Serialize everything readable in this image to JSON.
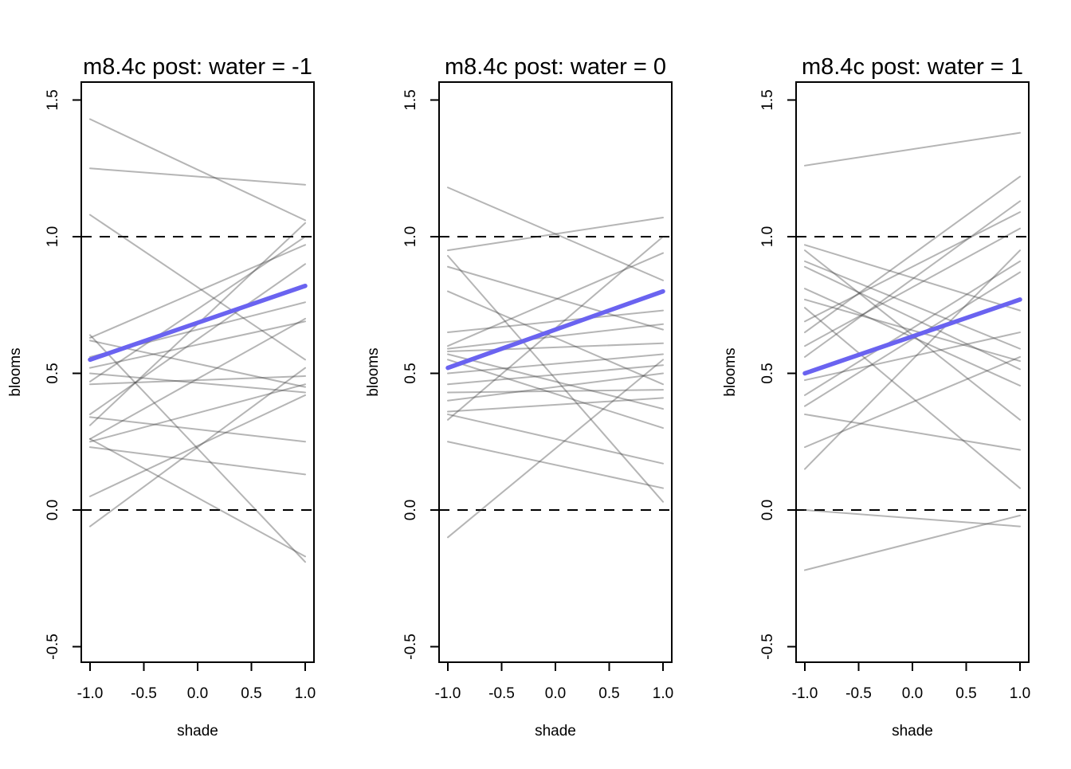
{
  "figure": {
    "background": "#ffffff",
    "description": "Three-panel R base-graphics posterior prediction plot"
  },
  "chart_data": {
    "type": "line",
    "layout": "1x3 panels",
    "xlabel": "shade",
    "ylabel": "blooms",
    "x": [
      -1,
      1
    ],
    "x_ticks": [
      -1.0,
      -0.5,
      0.0,
      0.5,
      1.0
    ],
    "y_ticks": [
      -0.5,
      0.0,
      0.5,
      1.0,
      1.5
    ],
    "x_tick_labels": [
      "-1.0",
      "-0.5",
      "0.0",
      "0.5",
      "1.0"
    ],
    "y_tick_labels": [
      "-0.5",
      "0.0",
      "0.5",
      "1.0",
      "1.5"
    ],
    "xlim": [
      -1.08,
      1.08
    ],
    "ylim": [
      -0.56,
      1.55
    ],
    "grid": false,
    "legend": "none",
    "reference_lines_y": [
      0,
      1
    ],
    "reference_line_style": "dashed",
    "colors": {
      "mean_line": "#6a63f0",
      "sample_line": "#3c3c3c",
      "sample_line_opacity": 0.38,
      "reference_line": "#000000",
      "axis": "#000000"
    },
    "panels": [
      {
        "title": "m8.4c post: water = -1",
        "water": -1,
        "mean_line": [
          0.55,
          0.82
        ],
        "sample_lines": [
          [
            1.43,
            1.06
          ],
          [
            1.25,
            1.19
          ],
          [
            1.08,
            0.55
          ],
          [
            0.64,
            -0.19
          ],
          [
            0.63,
            0.97
          ],
          [
            0.62,
            0.45
          ],
          [
            0.56,
            0.76
          ],
          [
            0.52,
            0.69
          ],
          [
            0.5,
            0.43
          ],
          [
            0.47,
            1.0
          ],
          [
            0.46,
            0.49
          ],
          [
            0.35,
            0.9
          ],
          [
            0.34,
            0.25
          ],
          [
            0.31,
            1.05
          ],
          [
            0.26,
            0.7
          ],
          [
            0.26,
            -0.17
          ],
          [
            0.25,
            0.46
          ],
          [
            0.23,
            0.13
          ],
          [
            0.05,
            0.42
          ],
          [
            -0.06,
            0.52
          ]
        ]
      },
      {
        "title": "m8.4c post: water = 0",
        "water": 0,
        "mean_line": [
          0.52,
          0.8
        ],
        "sample_lines": [
          [
            1.18,
            0.84
          ],
          [
            0.95,
            1.07
          ],
          [
            0.93,
            0.03
          ],
          [
            0.89,
            0.66
          ],
          [
            0.8,
            0.46
          ],
          [
            0.65,
            0.73
          ],
          [
            0.6,
            0.94
          ],
          [
            0.59,
            0.68
          ],
          [
            0.58,
            0.61
          ],
          [
            0.57,
            0.37
          ],
          [
            0.55,
            0.3
          ],
          [
            0.5,
            0.57
          ],
          [
            0.46,
            0.53
          ],
          [
            0.43,
            0.44
          ],
          [
            0.4,
            0.5
          ],
          [
            0.36,
            0.41
          ],
          [
            0.35,
            0.17
          ],
          [
            0.33,
            1.0
          ],
          [
            0.25,
            0.08
          ],
          [
            -0.1,
            0.55
          ]
        ]
      },
      {
        "title": "m8.4c post: water = 1",
        "water": 1,
        "mean_line": [
          0.5,
          0.77
        ],
        "sample_lines": [
          [
            1.26,
            1.38
          ],
          [
            0.97,
            0.73
          ],
          [
            0.95,
            0.33
          ],
          [
            0.91,
            0.59
          ],
          [
            0.89,
            0.515
          ],
          [
            0.81,
            0.455
          ],
          [
            0.77,
            0.545
          ],
          [
            0.74,
            0.08
          ],
          [
            0.69,
            1.09
          ],
          [
            0.65,
            1.22
          ],
          [
            0.6,
            1.03
          ],
          [
            0.56,
            1.13
          ],
          [
            0.475,
            0.65
          ],
          [
            0.42,
            0.91
          ],
          [
            0.38,
            0.87
          ],
          [
            0.35,
            0.22
          ],
          [
            0.23,
            0.56
          ],
          [
            0.15,
            0.95
          ],
          [
            0.0,
            -0.06
          ],
          [
            -0.22,
            -0.02
          ]
        ]
      }
    ]
  }
}
